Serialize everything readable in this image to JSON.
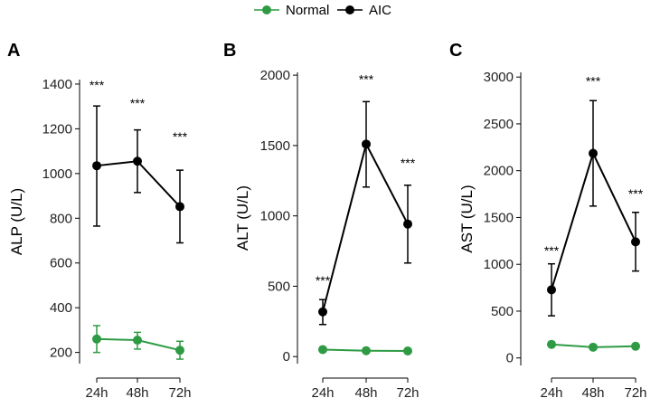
{
  "legend": {
    "entries": [
      {
        "label": "Normal",
        "color": "#2e9b44"
      },
      {
        "label": "AIC",
        "color": "#000000"
      }
    ]
  },
  "chart_data": [
    {
      "type": "line",
      "panel": "A",
      "ylabel": "ALP (U/L)",
      "xlabel": "",
      "categories": [
        "24h",
        "48h",
        "72h"
      ],
      "ylim": [
        150,
        1420
      ],
      "yticks": [
        200,
        400,
        600,
        800,
        1000,
        1200,
        1400
      ],
      "series": [
        {
          "name": "Normal",
          "color": "#2e9b44",
          "values": [
            260,
            255,
            210
          ],
          "err_low": [
            200,
            215,
            170
          ],
          "err_high": [
            320,
            290,
            250
          ]
        },
        {
          "name": "AIC",
          "color": "#000000",
          "values": [
            1035,
            1055,
            852
          ],
          "err_low": [
            765,
            915,
            690
          ],
          "err_high": [
            1302,
            1195,
            1015
          ]
        }
      ],
      "annotations": [
        "***",
        "***",
        "***"
      ],
      "annotation_values": [
        1375,
        1295,
        1145
      ]
    },
    {
      "type": "line",
      "panel": "B",
      "ylabel": "ALT (U/L)",
      "xlabel": "",
      "categories": [
        "24h",
        "48h",
        "72h"
      ],
      "ylim": [
        -50,
        2020
      ],
      "yticks": [
        0,
        500,
        1000,
        1500,
        2000
      ],
      "series": [
        {
          "name": "Normal",
          "color": "#2e9b44",
          "values": [
            50,
            42,
            40
          ],
          "err_low": [
            50,
            42,
            40
          ],
          "err_high": [
            50,
            42,
            40
          ]
        },
        {
          "name": "AIC",
          "color": "#000000",
          "values": [
            318,
            1510,
            942
          ],
          "err_low": [
            228,
            1205,
            665
          ],
          "err_high": [
            405,
            1812,
            1218
          ]
        }
      ],
      "annotations": [
        "***",
        "***",
        "***"
      ],
      "annotation_values": [
        508,
        1940,
        1345
      ]
    },
    {
      "type": "line",
      "panel": "C",
      "ylabel": "AST (U/L)",
      "xlabel": "",
      "categories": [
        "24h",
        "48h",
        "72h"
      ],
      "ylim": [
        -80,
        3050
      ],
      "yticks": [
        0,
        500,
        1000,
        1500,
        2000,
        2500,
        3000
      ],
      "series": [
        {
          "name": "Normal",
          "color": "#2e9b44",
          "values": [
            145,
            115,
            125
          ],
          "err_low": [
            145,
            115,
            125
          ],
          "err_high": [
            145,
            115,
            125
          ]
        },
        {
          "name": "AIC",
          "color": "#000000",
          "values": [
            728,
            2185,
            1240
          ],
          "err_low": [
            450,
            1622,
            928
          ],
          "err_high": [
            1005,
            2748,
            1555
          ]
        }
      ],
      "annotations": [
        "***",
        "***",
        "***"
      ],
      "annotation_values": [
        1100,
        2910,
        1705
      ]
    }
  ]
}
